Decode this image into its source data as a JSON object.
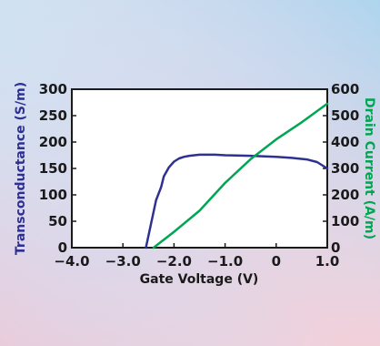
{
  "chart_data": {
    "type": "line",
    "title": "",
    "xlabel": "Gate Voltage (V)",
    "ylabel_left": "Transconductance (S/m)",
    "ylabel_right": "Drain Current (A/m)",
    "xlim": [
      -4.0,
      1.0
    ],
    "ylim_left": [
      0,
      300
    ],
    "ylim_right": [
      0,
      600
    ],
    "x_ticks": [
      "−4.0",
      "−3.0",
      "−2.0",
      "−1.0",
      "0",
      "1.0"
    ],
    "y_left_ticks": [
      "0",
      "50",
      "100",
      "150",
      "200",
      "250",
      "300"
    ],
    "y_right_ticks": [
      "0",
      "100",
      "200",
      "300",
      "400",
      "500",
      "600"
    ],
    "grid": false,
    "series": [
      {
        "name": "Transconductance",
        "axis": "left",
        "color": "#2e3192",
        "x": [
          -2.55,
          -2.45,
          -2.35,
          -2.25,
          -2.2,
          -2.1,
          -2.0,
          -1.9,
          -1.8,
          -1.7,
          -1.6,
          -1.5,
          -1.4,
          -1.2,
          -1.0,
          -0.5,
          0.0,
          0.3,
          0.6,
          0.8,
          1.0
        ],
        "y": [
          0,
          45,
          90,
          115,
          135,
          152,
          163,
          169,
          172,
          174,
          175,
          176,
          176,
          176,
          175,
          174,
          172,
          170,
          167,
          162,
          150
        ]
      },
      {
        "name": "Drain Current",
        "axis": "right",
        "color": "#00a651",
        "x": [
          -2.4,
          -2.0,
          -1.5,
          -1.0,
          -0.5,
          0.0,
          0.5,
          1.0
        ],
        "y": [
          0,
          60,
          140,
          245,
          335,
          410,
          475,
          545
        ]
      }
    ],
    "colors": {
      "left_axis_label": "#2e3192",
      "right_axis_label": "#00a651",
      "tick_text": "#1a1a1a"
    }
  }
}
